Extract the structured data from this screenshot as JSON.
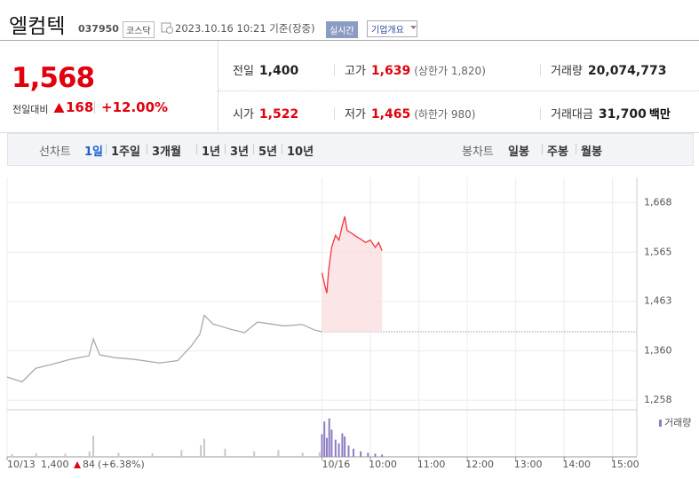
{
  "header": {
    "title": "엘컴텍",
    "code": "037950",
    "market": "코스닥",
    "time": "2023.10.16 10:21 기준(장중)",
    "realtime": "실시간",
    "company": "기업개요"
  },
  "quote": {
    "price": "1,568",
    "change_label": "전일대비",
    "change": "168",
    "rate": "+12.00%"
  },
  "stats": [
    {
      "label": "전일",
      "value": "1,400",
      "color": "#222"
    },
    {
      "label": "고가",
      "value": "1,639",
      "note": "(상한가 1,820)",
      "color": "#e0000e"
    },
    {
      "label": "거래량",
      "value": "20,074,773",
      "color": "#222"
    },
    {
      "label": "시가",
      "value": "1,522",
      "color": "#e0000e"
    },
    {
      "label": "저가",
      "value": "1,465",
      "note": "(하한가 980)",
      "color": "#e0000e"
    },
    {
      "label": "거래대금",
      "value": "31,700",
      "unit": "백만",
      "color": "#222"
    }
  ],
  "tabs": {
    "line_label": "선차트",
    "line": [
      "1일",
      "1주일",
      "3개월",
      "1년",
      "3년",
      "5년",
      "10년"
    ],
    "candle_label": "봉차트",
    "candle": [
      "일봉",
      "주봉",
      "월봉"
    ]
  },
  "chart_data": {
    "type": "line",
    "xlim": [
      -6.5,
      6.5
    ],
    "ylim": [
      1238,
      1720
    ],
    "xticks": [
      {
        "value": -6.5,
        "label": "10/13"
      },
      {
        "value": 0,
        "label": "10/16"
      },
      {
        "value": 1,
        "label": "10:00"
      },
      {
        "value": 2,
        "label": "11:00"
      },
      {
        "value": 3,
        "label": "12:00"
      },
      {
        "value": 4,
        "label": "13:00"
      },
      {
        "value": 5,
        "label": "14:00"
      },
      {
        "value": 6,
        "label": "15:00"
      }
    ],
    "yticks": [
      {
        "value": 1258,
        "label": "1,258"
      },
      {
        "value": 1360,
        "label": "1,360"
      },
      {
        "value": 1463,
        "label": "1,463"
      },
      {
        "value": 1565,
        "label": "1,565"
      },
      {
        "value": 1668,
        "label": "1,668"
      }
    ],
    "reference": 1400,
    "grid": true,
    "series": [
      {
        "color": "#aaaaaa",
        "x": [
          -6.5,
          -6.19,
          -5.91,
          -5.55,
          -5.18,
          -4.81,
          -4.72,
          -4.59,
          -4.26,
          -3.9,
          -3.35,
          -2.98,
          -2.7,
          -2.52,
          -2.43,
          -2.25,
          -1.88,
          -1.6,
          -1.33,
          -0.78,
          -0.41,
          -0.14,
          -0.01
        ],
        "values": [
          1306,
          1296,
          1324,
          1333,
          1343,
          1350,
          1385,
          1352,
          1346,
          1343,
          1335,
          1340,
          1370,
          1395,
          1434,
          1416,
          1405,
          1398,
          1420,
          1412,
          1415,
          1403,
          1400
        ]
      },
      {
        "color": "#f0363c",
        "fill": "#fbdfe0",
        "x": [
          0.0,
          0.05,
          0.1,
          0.14,
          0.2,
          0.28,
          0.35,
          0.42,
          0.47,
          0.52,
          0.6,
          0.7,
          0.8,
          0.9,
          1.0,
          1.1,
          1.17,
          1.24
        ],
        "values": [
          1522,
          1500,
          1480,
          1530,
          1575,
          1600,
          1590,
          1620,
          1639,
          1610,
          1605,
          1598,
          1592,
          1585,
          1590,
          1575,
          1585,
          1568
        ]
      }
    ],
    "volume_lim": [
      0,
      1000000
    ],
    "volume": [
      {
        "color": "#c8c8c8",
        "x": [
          -6.4,
          -5.9,
          -5.3,
          -4.8,
          -4.72,
          -4.2,
          -3.5,
          -2.9,
          -2.5,
          -2.43,
          -2.0,
          -1.4,
          -0.9,
          -0.4,
          -0.05
        ],
        "values": [
          60000,
          80000,
          70000,
          120000,
          470000,
          90000,
          80000,
          150000,
          260000,
          400000,
          180000,
          120000,
          150000,
          90000,
          100000
        ]
      },
      {
        "name": "거래량",
        "color": "#8e7cc3",
        "x": [
          0.0,
          0.05,
          0.1,
          0.15,
          0.2,
          0.28,
          0.35,
          0.42,
          0.47,
          0.55,
          0.65,
          0.8,
          0.95,
          1.1,
          1.24
        ],
        "values": [
          500000,
          780000,
          420000,
          850000,
          600000,
          380000,
          300000,
          520000,
          450000,
          250000,
          180000,
          120000,
          90000,
          70000,
          50000
        ]
      }
    ],
    "prev_summary": {
      "close": "1,400",
      "change": "84",
      "rate": "(+6.38%)"
    }
  }
}
